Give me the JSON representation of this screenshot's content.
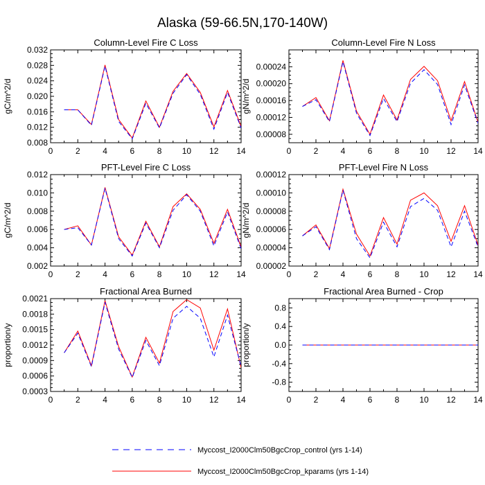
{
  "title": "Alaska (59-66.5N,170-140W)",
  "colors": {
    "control": "#0000ff",
    "kparams": "#ff0000",
    "axis": "#000000"
  },
  "legend": [
    {
      "key": "control",
      "label": "Myccost_I2000Clm50BgcCrop_control (yrs 1-14)",
      "style": "dashed",
      "color": "#0000ff"
    },
    {
      "key": "kparams",
      "label": "Myccost_I2000Clm50BgcCrop_kparams (yrs 1-14)",
      "style": "solid",
      "color": "#ff0000"
    }
  ],
  "chart_data": [
    {
      "type": "line",
      "title": "Column-Level Fire C Loss",
      "xlabel": "",
      "ylabel": "gC/m^2/d",
      "xlim": [
        0,
        14
      ],
      "ylim": [
        0.008,
        0.032
      ],
      "x_ticks": [
        "0",
        "2",
        "4",
        "6",
        "8",
        "10",
        "12",
        "14"
      ],
      "y_ticks": [
        "0.008",
        "0.012",
        "0.016",
        "0.020",
        "0.024",
        "0.028",
        "0.032"
      ],
      "x": [
        1,
        2,
        3,
        4,
        5,
        6,
        7,
        8,
        9,
        10,
        11,
        12,
        13,
        14
      ],
      "series": [
        {
          "name": "control",
          "values": [
            0.0165,
            0.0165,
            0.0125,
            0.0278,
            0.0135,
            0.009,
            0.0182,
            0.0118,
            0.0208,
            0.0256,
            0.0205,
            0.0115,
            0.021,
            0.0118
          ]
        },
        {
          "name": "kparams",
          "values": [
            0.0165,
            0.0165,
            0.0127,
            0.0281,
            0.014,
            0.0092,
            0.0188,
            0.012,
            0.0213,
            0.0259,
            0.021,
            0.0121,
            0.0215,
            0.0122
          ]
        }
      ]
    },
    {
      "type": "line",
      "title": "Column-Level Fire N Loss",
      "xlabel": "",
      "ylabel": "gN/m^2/d",
      "xlim": [
        0,
        14
      ],
      "ylim": [
        6e-05,
        0.00028
      ],
      "x_ticks": [
        "0",
        "2",
        "4",
        "6",
        "8",
        "10",
        "12",
        "14"
      ],
      "y_ticks": [
        "0.00008",
        "0.00012",
        "0.00016",
        "0.00020",
        "0.00024"
      ],
      "x": [
        1,
        2,
        3,
        4,
        5,
        6,
        7,
        8,
        9,
        10,
        11,
        12,
        13,
        14
      ],
      "series": [
        {
          "name": "control",
          "values": [
            0.000146,
            0.000162,
            0.00011,
            0.000252,
            0.00013,
            7.7e-05,
            0.000165,
            0.00011,
            0.000201,
            0.000233,
            0.000198,
            0.000103,
            0.000197,
            0.000106
          ]
        },
        {
          "name": "kparams",
          "values": [
            0.000146,
            0.000167,
            0.000112,
            0.000255,
            0.000135,
            8e-05,
            0.000173,
            0.000114,
            0.00021,
            0.000241,
            0.000207,
            0.000112,
            0.000205,
            0.000108
          ]
        }
      ]
    },
    {
      "type": "line",
      "title": "PFT-Level Fire C Loss",
      "xlabel": "",
      "ylabel": "gC/m^2/d",
      "xlim": [
        0,
        14
      ],
      "ylim": [
        0.002,
        0.012
      ],
      "x_ticks": [
        "0",
        "2",
        "4",
        "6",
        "8",
        "10",
        "12",
        "14"
      ],
      "y_ticks": [
        "0.002",
        "0.004",
        "0.006",
        "0.008",
        "0.010",
        "0.012"
      ],
      "x": [
        1,
        2,
        3,
        4,
        5,
        6,
        7,
        8,
        9,
        10,
        11,
        12,
        13,
        14
      ],
      "series": [
        {
          "name": "control",
          "values": [
            0.006,
            0.0062,
            0.0043,
            0.0105,
            0.005,
            0.0031,
            0.0067,
            0.004,
            0.0081,
            0.0098,
            0.008,
            0.0042,
            0.0079,
            0.0039
          ]
        },
        {
          "name": "kparams",
          "values": [
            0.006,
            0.0064,
            0.0043,
            0.0106,
            0.0052,
            0.0032,
            0.0069,
            0.0041,
            0.0085,
            0.0099,
            0.0082,
            0.0045,
            0.0082,
            0.0041
          ]
        }
      ]
    },
    {
      "type": "line",
      "title": "PFT-Level Fire N Loss",
      "xlabel": "",
      "ylabel": "gN/m^2/d",
      "xlim": [
        0,
        14
      ],
      "ylim": [
        2e-05,
        0.00012
      ],
      "x_ticks": [
        "0",
        "2",
        "4",
        "6",
        "8",
        "10",
        "12",
        "14"
      ],
      "y_ticks": [
        "0.00002",
        "0.00004",
        "0.00006",
        "0.00008",
        "0.00010",
        "0.00012"
      ],
      "x": [
        1,
        2,
        3,
        4,
        5,
        6,
        7,
        8,
        9,
        10,
        11,
        12,
        13,
        14
      ],
      "series": [
        {
          "name": "control",
          "values": [
            5.3e-05,
            6.3e-05,
            3.8e-05,
            0.000103,
            5e-05,
            2.9e-05,
            6.8e-05,
            4.1e-05,
            8.5e-05,
            9.4e-05,
            8.1e-05,
            4.1e-05,
            8e-05,
            4.1e-05
          ]
        },
        {
          "name": "kparams",
          "values": [
            5.3e-05,
            6.5e-05,
            3.9e-05,
            0.000104,
            5.5e-05,
            3.1e-05,
            7.3e-05,
            4.4e-05,
            9.2e-05,
            0.0001,
            8.6e-05,
            4.7e-05,
            8.6e-05,
            4.3e-05
          ]
        }
      ]
    },
    {
      "type": "line",
      "title": "Fractional Area Burned",
      "xlabel": "",
      "ylabel": "proportion/y",
      "xlim": [
        0,
        14
      ],
      "ylim": [
        0.0003,
        0.0021
      ],
      "x_ticks": [
        "0",
        "2",
        "4",
        "6",
        "8",
        "10",
        "12",
        "14"
      ],
      "y_ticks": [
        "0.0003",
        "0.0006",
        "0.0009",
        "0.0012",
        "0.0015",
        "0.0018",
        "0.0021"
      ],
      "x": [
        1,
        2,
        3,
        4,
        5,
        6,
        7,
        8,
        9,
        10,
        11,
        12,
        13,
        14
      ],
      "series": [
        {
          "name": "control",
          "values": [
            0.00105,
            0.00143,
            0.00078,
            0.00203,
            0.00112,
            0.00057,
            0.00129,
            0.0008,
            0.00172,
            0.00195,
            0.00172,
            0.00097,
            0.00178,
            0.00078
          ]
        },
        {
          "name": "kparams",
          "values": [
            0.00105,
            0.00147,
            0.0008,
            0.00206,
            0.00117,
            0.00058,
            0.00135,
            0.00085,
            0.00185,
            0.00208,
            0.00192,
            0.0011,
            0.0019,
            0.00076
          ]
        }
      ]
    },
    {
      "type": "line",
      "title": "Fractional Area Burned - Crop",
      "xlabel": "",
      "ylabel": "proportion/y",
      "xlim": [
        0,
        14
      ],
      "ylim": [
        -1,
        1
      ],
      "x_ticks": [
        "0",
        "2",
        "4",
        "6",
        "8",
        "10",
        "12",
        "14"
      ],
      "y_ticks": [
        "-0.8",
        "-0.4",
        "0.0",
        "0.4",
        "0.8"
      ],
      "x": [
        1,
        2,
        3,
        4,
        5,
        6,
        7,
        8,
        9,
        10,
        11,
        12,
        13,
        14
      ],
      "series": [
        {
          "name": "control",
          "values": [
            0,
            0,
            0,
            0,
            0,
            0,
            0,
            0,
            0,
            0,
            0,
            0,
            0,
            0
          ]
        },
        {
          "name": "kparams",
          "values": [
            0,
            0,
            0,
            0,
            0,
            0,
            0,
            0,
            0,
            0,
            0,
            0,
            0,
            0
          ]
        }
      ]
    }
  ]
}
